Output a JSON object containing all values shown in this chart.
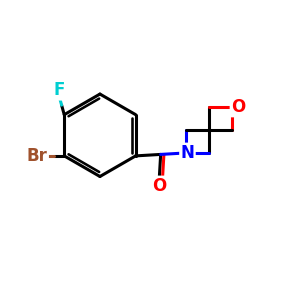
{
  "bg_color": "#ffffff",
  "bond_color": "#000000",
  "bond_width": 2.2,
  "atom_colors": {
    "Br": "#A0522D",
    "F": "#00CED1",
    "O": "#FF0000",
    "N": "#0000FF",
    "C": "#000000"
  },
  "font_size_atoms": 12
}
